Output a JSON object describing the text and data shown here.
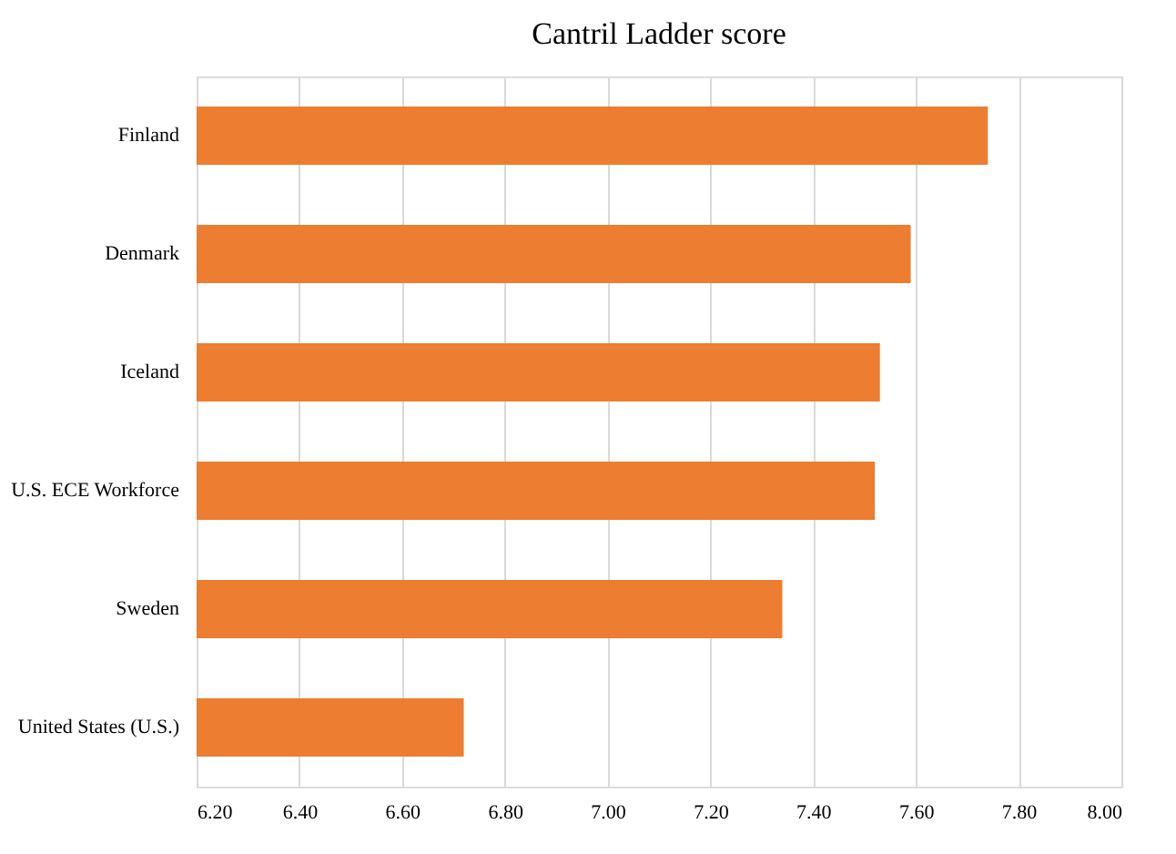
{
  "chart_data": {
    "type": "bar",
    "orientation": "horizontal",
    "title": "Cantril Ladder score",
    "categories": [
      "Finland",
      "Denmark",
      "Iceland",
      "U.S. ECE Workforce",
      "Sweden",
      "United States (U.S.)"
    ],
    "values": [
      7.74,
      7.59,
      7.53,
      7.52,
      7.34,
      6.72
    ],
    "color": "#ed7d31",
    "xlim": [
      6.2,
      8.0
    ],
    "xticks": [
      {
        "value": 6.2,
        "label": "6.20"
      },
      {
        "value": 6.4,
        "label": "6.40"
      },
      {
        "value": 6.6,
        "label": "6.60"
      },
      {
        "value": 6.8,
        "label": "6.80"
      },
      {
        "value": 7.0,
        "label": "7.00"
      },
      {
        "value": 7.2,
        "label": "7.20"
      },
      {
        "value": 7.4,
        "label": "7.40"
      },
      {
        "value": 7.6,
        "label": "7.60"
      },
      {
        "value": 7.8,
        "label": "7.80"
      },
      {
        "value": 8.0,
        "label": "8.00"
      }
    ],
    "grid": "x"
  }
}
